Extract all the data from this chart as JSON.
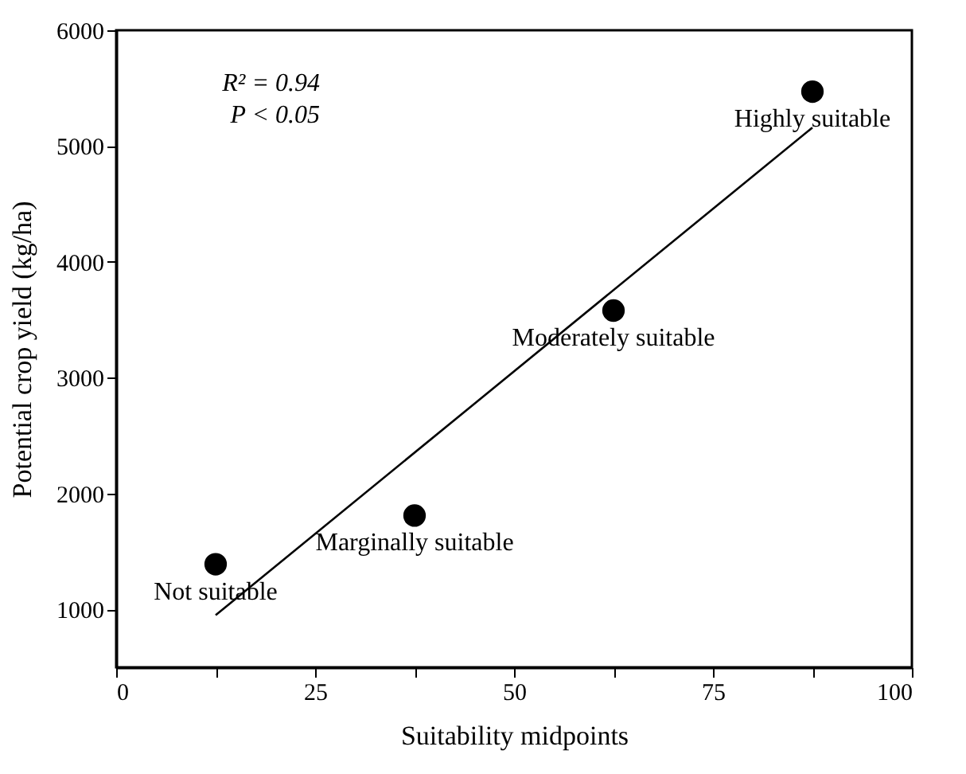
{
  "chart_data": {
    "type": "scatter",
    "xlabel": "Suitability midpoints",
    "ylabel": "Potential crop yield (kg/ha)",
    "xlim": [
      0,
      100
    ],
    "ylim": [
      500,
      6000
    ],
    "xticks": [
      0,
      {
        "value": 12.5,
        "label": null
      },
      25,
      {
        "value": 37.5,
        "label": null
      },
      50,
      {
        "value": 62.5,
        "label": null
      },
      75,
      {
        "value": 87.5,
        "label": null
      },
      100
    ],
    "yticks": [
      1000,
      2000,
      3000,
      4000,
      5000,
      6000
    ],
    "grid": false,
    "series": [
      {
        "type": "scatter",
        "color": "#000000",
        "marker": "circle",
        "x": [
          12.5,
          37.5,
          62.5,
          87.5
        ],
        "values": [
          1390,
          1810,
          3580,
          5470
        ]
      },
      {
        "type": "line",
        "color": "#000000",
        "x": [
          12.5,
          87.5
        ],
        "values": [
          950,
          5160
        ]
      }
    ],
    "annotations": [
      {
        "text": "Not suitable",
        "x": 12.5,
        "y": 1390
      },
      {
        "text": "Marginally suitable",
        "x": 37.5,
        "y": 1810
      },
      {
        "text": "Moderately suitable",
        "x": 62.5,
        "y": 3580
      },
      {
        "text": "Highly suitable",
        "x": 87.5,
        "y": 5470
      },
      "R² = 0.94",
      "P < 0.05"
    ]
  }
}
